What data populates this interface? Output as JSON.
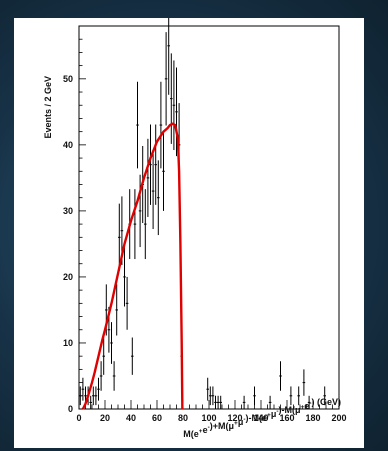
{
  "chart_data": {
    "type": "scatter",
    "title": "",
    "xlabel_parts": [
      {
        "t": "M(e",
        "sup": false
      },
      {
        "t": "+",
        "sup": true
      },
      {
        "t": "e",
        "sup": false
      },
      {
        "t": "-",
        "sup": true
      },
      {
        "t": ")+M(μ",
        "sup": false
      },
      {
        "t": "+",
        "sup": true
      },
      {
        "t": "μ",
        "sup": false
      },
      {
        "t": "-",
        "sup": true
      },
      {
        "t": ")-M(e",
        "sup": false
      },
      {
        "t": "+",
        "sup": true
      },
      {
        "t": "μ",
        "sup": false
      },
      {
        "t": "-",
        "sup": true
      },
      {
        "t": ")-M(μ",
        "sup": false
      },
      {
        "t": "+",
        "sup": true
      },
      {
        "t": "e",
        "sup": false
      },
      {
        "t": "-",
        "sup": true
      },
      {
        "t": ") (GeV)",
        "sup": false
      }
    ],
    "ylabel": "Events / 2 GeV",
    "xlim": [
      0,
      200
    ],
    "ylim": [
      0,
      58
    ],
    "x_ticks": [
      0,
      20,
      40,
      60,
      80,
      100,
      120,
      140,
      160,
      180,
      200
    ],
    "y_ticks": [
      0,
      10,
      20,
      30,
      40,
      50
    ],
    "x_tick_labels": [
      "0",
      "20",
      "40",
      "60",
      "80",
      "100",
      "120",
      "140",
      "160",
      "180",
      "200"
    ],
    "y_tick_labels": [
      "0",
      "10",
      "20",
      "30",
      "40",
      "50"
    ],
    "grid": false,
    "series": [
      {
        "kind": "data-points-with-error-bars",
        "color": "#000000",
        "x": [
          1,
          3,
          5,
          7,
          9,
          11,
          13,
          15,
          17,
          19,
          21,
          23,
          25,
          27,
          29,
          31,
          33,
          35,
          37,
          39,
          41,
          43,
          45,
          47,
          49,
          51,
          53,
          55,
          57,
          59,
          61,
          63,
          65,
          67,
          69,
          71,
          73,
          75,
          77,
          79,
          99,
          101,
          103,
          105,
          107,
          109,
          127,
          135,
          147,
          155,
          163,
          169,
          173,
          177,
          189
        ],
        "y": [
          2,
          3,
          2,
          2,
          1,
          2,
          2,
          3,
          5,
          8,
          15,
          12,
          10,
          5,
          15,
          26,
          27,
          20,
          16,
          28,
          8,
          28,
          43,
          30,
          34,
          28,
          35,
          37,
          33,
          37,
          32,
          43,
          36,
          50,
          55,
          47,
          46,
          45,
          40,
          8,
          3,
          2,
          2,
          1,
          1,
          1,
          1,
          2,
          1,
          5,
          2,
          2,
          4,
          1,
          2
        ]
      },
      {
        "kind": "fit-curve",
        "color": "#e00000",
        "x": [
          3,
          5,
          7,
          10,
          12,
          15,
          18,
          20,
          25,
          30,
          35,
          40,
          45,
          50,
          55,
          60,
          65,
          68,
          70,
          72,
          74,
          76,
          77,
          78,
          79,
          79.5
        ],
        "y": [
          0,
          0.8,
          2,
          4,
          5.5,
          8,
          10.5,
          12,
          16,
          20.5,
          25,
          28.5,
          31.5,
          35,
          38,
          40.5,
          42,
          42.5,
          43,
          43.2,
          43,
          41,
          36,
          25,
          10,
          0
        ]
      }
    ]
  }
}
